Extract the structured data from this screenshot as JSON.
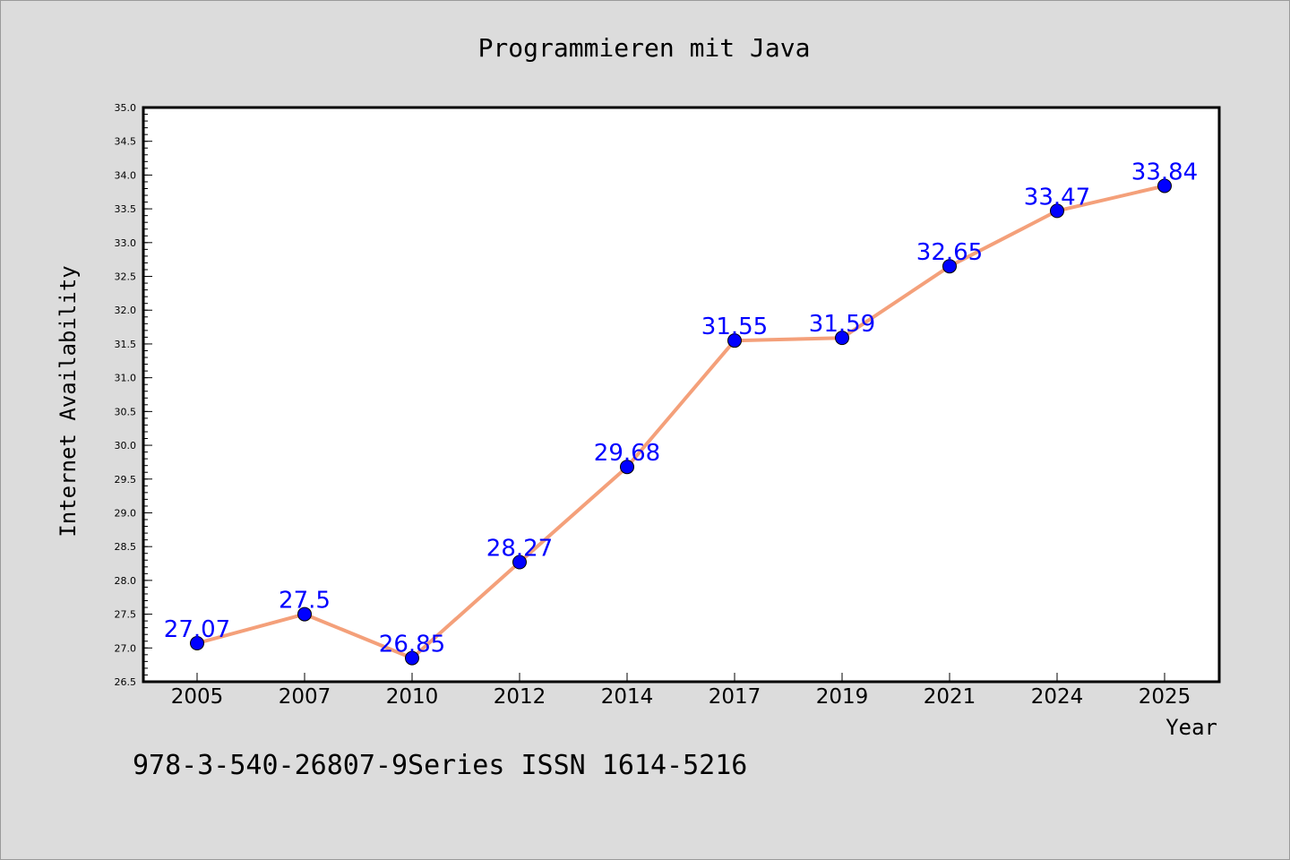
{
  "chart_data": {
    "type": "line",
    "title": "Programmieren mit Java",
    "xlabel": "Year",
    "ylabel": "Internet Availability",
    "categories": [
      "2005",
      "2007",
      "2010",
      "2012",
      "2014",
      "2017",
      "2019",
      "2021",
      "2024",
      "2025"
    ],
    "series": [
      {
        "values": [
          27.07,
          27.5,
          26.85,
          28.27,
          29.68,
          31.55,
          31.59,
          32.65,
          33.47,
          33.84
        ],
        "line_color": "#f4a07a",
        "marker_color": "#0000ff"
      }
    ],
    "data_labels": [
      "27.07",
      "27.5",
      "26.85",
      "28.27",
      "29.68",
      "31.55",
      "31.59",
      "32.65",
      "33.47",
      "33.84"
    ],
    "ylim": [
      26.5,
      35.0
    ],
    "yticks": [
      "26.5",
      "27.0",
      "27.5",
      "28.0",
      "28.5",
      "29.0",
      "29.5",
      "30.0",
      "30.5",
      "31.0",
      "31.5",
      "32.0",
      "32.5",
      "33.0",
      "33.5",
      "34.0",
      "34.5",
      "35.0"
    ],
    "grid": false,
    "legend": "none",
    "footnote": "978-3-540-26807-9Series ISSN 1614-5216"
  }
}
